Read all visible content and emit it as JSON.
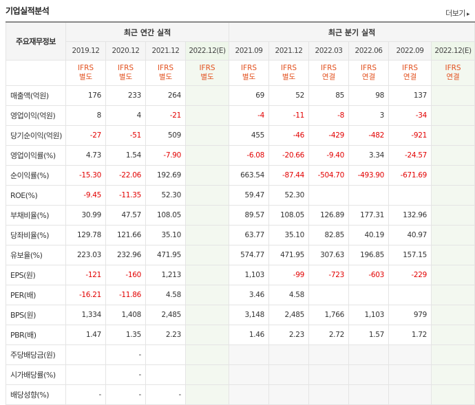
{
  "page": {
    "title": "기업실적분석",
    "more_label": "더보기",
    "more_arrow": "▸"
  },
  "table": {
    "row_header_label": "주요재무정보",
    "group_annual": "최근 연간 실적",
    "group_quarter": "최근 분기 실적",
    "periods": [
      "2019.12",
      "2020.12",
      "2021.12",
      "2022.12(E)",
      "2021.09",
      "2021.12",
      "2022.03",
      "2022.06",
      "2022.09",
      "2022.12(E)"
    ],
    "ifrs_top": [
      "IFRS",
      "IFRS",
      "IFRS",
      "IFRS",
      "IFRS",
      "IFRS",
      "IFRS",
      "IFRS",
      "IFRS",
      "IFRS"
    ],
    "ifrs_bottom": [
      "별도",
      "별도",
      "별도",
      "별도",
      "별도",
      "별도",
      "연결",
      "연결",
      "연결",
      "연결"
    ],
    "rows": [
      {
        "label": "매출액(억원)",
        "values": [
          "176",
          "233",
          "264",
          "",
          "69",
          "52",
          "85",
          "98",
          "137",
          ""
        ]
      },
      {
        "label": "영업이익(억원)",
        "values": [
          "8",
          "4",
          "-21",
          "",
          "-4",
          "-11",
          "-8",
          "3",
          "-34",
          ""
        ]
      },
      {
        "label": "당기순이익(억원)",
        "values": [
          "-27",
          "-51",
          "509",
          "",
          "455",
          "-46",
          "-429",
          "-482",
          "-921",
          ""
        ]
      },
      {
        "label": "영업이익률(%)",
        "values": [
          "4.73",
          "1.54",
          "-7.90",
          "",
          "-6.08",
          "-20.66",
          "-9.40",
          "3.34",
          "-24.57",
          ""
        ]
      },
      {
        "label": "순이익률(%)",
        "values": [
          "-15.30",
          "-22.06",
          "192.69",
          "",
          "663.54",
          "-87.44",
          "-504.70",
          "-493.90",
          "-671.69",
          ""
        ]
      },
      {
        "label": "ROE(%)",
        "values": [
          "-9.45",
          "-11.35",
          "52.30",
          "",
          "59.47",
          "52.30",
          "",
          "",
          "",
          ""
        ]
      },
      {
        "label": "부채비율(%)",
        "values": [
          "30.99",
          "47.57",
          "108.05",
          "",
          "89.57",
          "108.05",
          "126.89",
          "177.31",
          "132.96",
          ""
        ]
      },
      {
        "label": "당좌비율(%)",
        "values": [
          "129.78",
          "121.66",
          "35.10",
          "",
          "63.77",
          "35.10",
          "82.85",
          "40.19",
          "40.97",
          ""
        ]
      },
      {
        "label": "유보율(%)",
        "values": [
          "223.03",
          "232.96",
          "471.95",
          "",
          "574.77",
          "471.95",
          "307.63",
          "196.85",
          "157.15",
          ""
        ]
      },
      {
        "label": "EPS(원)",
        "values": [
          "-121",
          "-160",
          "1,213",
          "",
          "1,103",
          "-99",
          "-723",
          "-603",
          "-229",
          ""
        ]
      },
      {
        "label": "PER(배)",
        "values": [
          "-16.21",
          "-11.86",
          "4.58",
          "",
          "3.46",
          "4.58",
          "",
          "",
          "",
          ""
        ]
      },
      {
        "label": "BPS(원)",
        "values": [
          "1,334",
          "1,408",
          "2,485",
          "",
          "3,148",
          "2,485",
          "1,766",
          "1,103",
          "979",
          ""
        ]
      },
      {
        "label": "PBR(배)",
        "values": [
          "1.47",
          "1.35",
          "2.23",
          "",
          "1.46",
          "2.23",
          "2.72",
          "1.57",
          "1.72",
          ""
        ]
      },
      {
        "label": "주당배당금(원)",
        "values": [
          "",
          "-",
          "",
          "",
          "",
          "",
          "",
          "",
          "",
          ""
        ]
      },
      {
        "label": "시가배당률(%)",
        "values": [
          "",
          "-",
          "",
          "",
          "",
          "",
          "",
          "",
          "",
          ""
        ]
      },
      {
        "label": "배당성향(%)",
        "values": [
          "-",
          "-",
          "-",
          "",
          "",
          "",
          "",
          "",
          "",
          ""
        ]
      }
    ]
  }
}
